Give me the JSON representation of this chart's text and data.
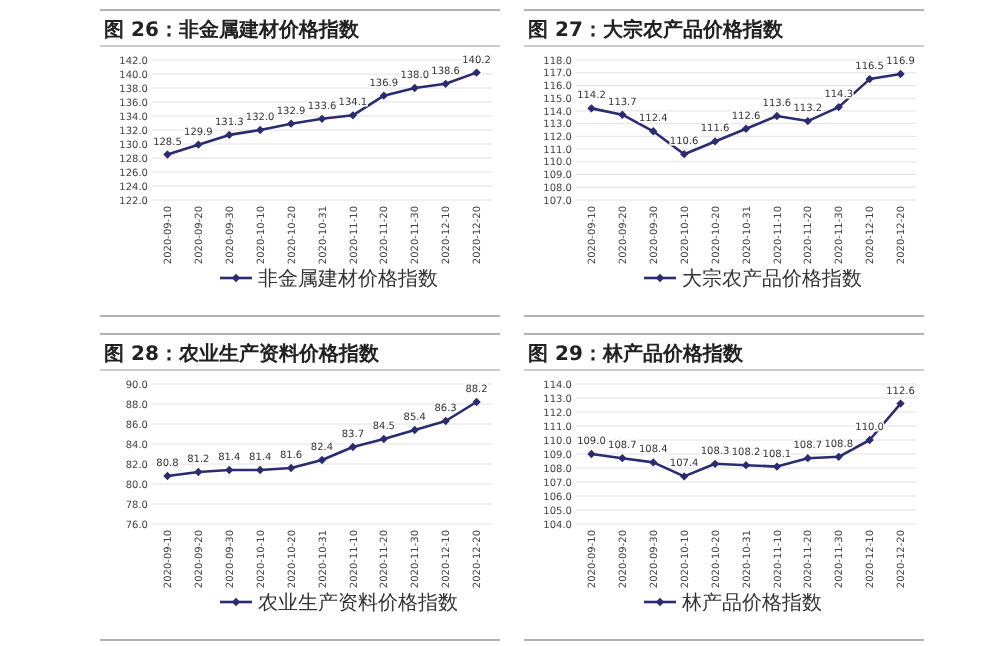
{
  "chart_data": [
    {
      "type": "line",
      "title": "图 26：非金属建材价格指数",
      "categories": [
        "2020-09-10",
        "2020-09-20",
        "2020-09-30",
        "2020-10-10",
        "2020-10-20",
        "2020-10-31",
        "2020-11-10",
        "2020-11-20",
        "2020-11-30",
        "2020-12-10",
        "2020-12-20"
      ],
      "series": [
        {
          "name": "非金属建材价格指数",
          "color": "#2b2b72",
          "values": [
            128.5,
            129.9,
            131.3,
            132.0,
            132.9,
            133.6,
            134.1,
            136.9,
            138.0,
            138.6,
            140.2
          ],
          "value_labels": [
            "128.5",
            "129.9",
            "131.3",
            "132.0",
            "132.9",
            "133.6",
            "134.1",
            "136.9",
            "138.0",
            "138.6",
            "140.2"
          ]
        }
      ],
      "ylim": [
        122,
        142
      ],
      "yticks": [
        {
          "value": 122,
          "label": "122.0"
        },
        {
          "value": 124,
          "label": "124.0"
        },
        {
          "value": 126,
          "label": "126.0"
        },
        {
          "value": 128,
          "label": "128.0"
        },
        {
          "value": 130,
          "label": "130.0"
        },
        {
          "value": 132,
          "label": "132.0"
        },
        {
          "value": 134,
          "label": "134.0"
        },
        {
          "value": 136,
          "label": "136.0"
        },
        {
          "value": 138,
          "label": "138.0"
        },
        {
          "value": 140,
          "label": "140.0"
        },
        {
          "value": 142,
          "label": "142.0"
        }
      ],
      "grid": "y",
      "legend": "bottom",
      "marker": "diamond"
    },
    {
      "type": "line",
      "title": "图 27：大宗农产品价格指数",
      "categories": [
        "2020-09-10",
        "2020-09-20",
        "2020-09-30",
        "2020-10-10",
        "2020-10-20",
        "2020-10-31",
        "2020-11-10",
        "2020-11-20",
        "2020-11-30",
        "2020-12-10",
        "2020-12-20"
      ],
      "series": [
        {
          "name": "大宗农产品价格指数",
          "color": "#2b2b72",
          "values": [
            114.2,
            113.7,
            112.4,
            110.6,
            111.6,
            112.6,
            113.6,
            113.2,
            114.3,
            116.5,
            116.9
          ],
          "value_labels": [
            "114.2",
            "113.7",
            "112.4",
            "110.6",
            "111.6",
            "112.6",
            "113.6",
            "113.2",
            "114.3",
            "116.5",
            "116.9"
          ]
        }
      ],
      "ylim": [
        107,
        118
      ],
      "yticks": [
        {
          "value": 107,
          "label": "107.0"
        },
        {
          "value": 108,
          "label": "108.0"
        },
        {
          "value": 109,
          "label": "109.0"
        },
        {
          "value": 110,
          "label": "110.0"
        },
        {
          "value": 111,
          "label": "111.0"
        },
        {
          "value": 112,
          "label": "112.0"
        },
        {
          "value": 113,
          "label": "113.0"
        },
        {
          "value": 114,
          "label": "114.0"
        },
        {
          "value": 115,
          "label": "115.0"
        },
        {
          "value": 116,
          "label": "116.0"
        },
        {
          "value": 117,
          "label": "117.0"
        },
        {
          "value": 118,
          "label": "118.0"
        }
      ],
      "grid": "y",
      "legend": "bottom",
      "marker": "diamond"
    },
    {
      "type": "line",
      "title": "图 28：农业生产资料价格指数",
      "categories": [
        "2020-09-10",
        "2020-09-20",
        "2020-09-30",
        "2020-10-10",
        "2020-10-20",
        "2020-10-31",
        "2020-11-10",
        "2020-11-20",
        "2020-11-30",
        "2020-12-10",
        "2020-12-20"
      ],
      "series": [
        {
          "name": "农业生产资料价格指数",
          "color": "#2b2b72",
          "values": [
            80.8,
            81.2,
            81.4,
            81.4,
            81.6,
            82.4,
            83.7,
            84.5,
            85.4,
            86.3,
            88.2
          ],
          "value_labels": [
            "80.8",
            "81.2",
            "81.4",
            "81.4",
            "81.6",
            "82.4",
            "83.7",
            "84.5",
            "85.4",
            "86.3",
            "88.2"
          ]
        }
      ],
      "ylim": [
        76,
        90
      ],
      "yticks": [
        {
          "value": 76,
          "label": "76.0"
        },
        {
          "value": 78,
          "label": "78.0"
        },
        {
          "value": 80,
          "label": "80.0"
        },
        {
          "value": 82,
          "label": "82.0"
        },
        {
          "value": 84,
          "label": "84.0"
        },
        {
          "value": 86,
          "label": "86.0"
        },
        {
          "value": 88,
          "label": "88.0"
        },
        {
          "value": 90,
          "label": "90.0"
        }
      ],
      "grid": "y",
      "legend": "bottom",
      "marker": "diamond"
    },
    {
      "type": "line",
      "title": "图 29：林产品价格指数",
      "categories": [
        "2020-09-10",
        "2020-09-20",
        "2020-09-30",
        "2020-10-10",
        "2020-10-20",
        "2020-10-31",
        "2020-11-10",
        "2020-11-20",
        "2020-11-30",
        "2020-12-10",
        "2020-12-20"
      ],
      "series": [
        {
          "name": "林产品价格指数",
          "color": "#2b2b72",
          "values": [
            109.0,
            108.7,
            108.4,
            107.4,
            108.3,
            108.2,
            108.1,
            108.7,
            108.8,
            110.0,
            112.6
          ],
          "value_labels": [
            "109.0",
            "108.7",
            "108.4",
            "107.4",
            "108.3",
            "108.2",
            "108.1",
            "108.7",
            "108.8",
            "110.0",
            "112.6"
          ]
        }
      ],
      "ylim": [
        104,
        114
      ],
      "yticks": [
        {
          "value": 104,
          "label": "104.0"
        },
        {
          "value": 105,
          "label": "105.0"
        },
        {
          "value": 106,
          "label": "106.0"
        },
        {
          "value": 107,
          "label": "107.0"
        },
        {
          "value": 108,
          "label": "108.0"
        },
        {
          "value": 109,
          "label": "109.0"
        },
        {
          "value": 110,
          "label": "110.0"
        },
        {
          "value": 111,
          "label": "111.0"
        },
        {
          "value": 112,
          "label": "112.0"
        },
        {
          "value": 113,
          "label": "113.0"
        },
        {
          "value": 114,
          "label": "114.0"
        }
      ],
      "grid": "y",
      "legend": "bottom",
      "marker": "diamond"
    }
  ]
}
